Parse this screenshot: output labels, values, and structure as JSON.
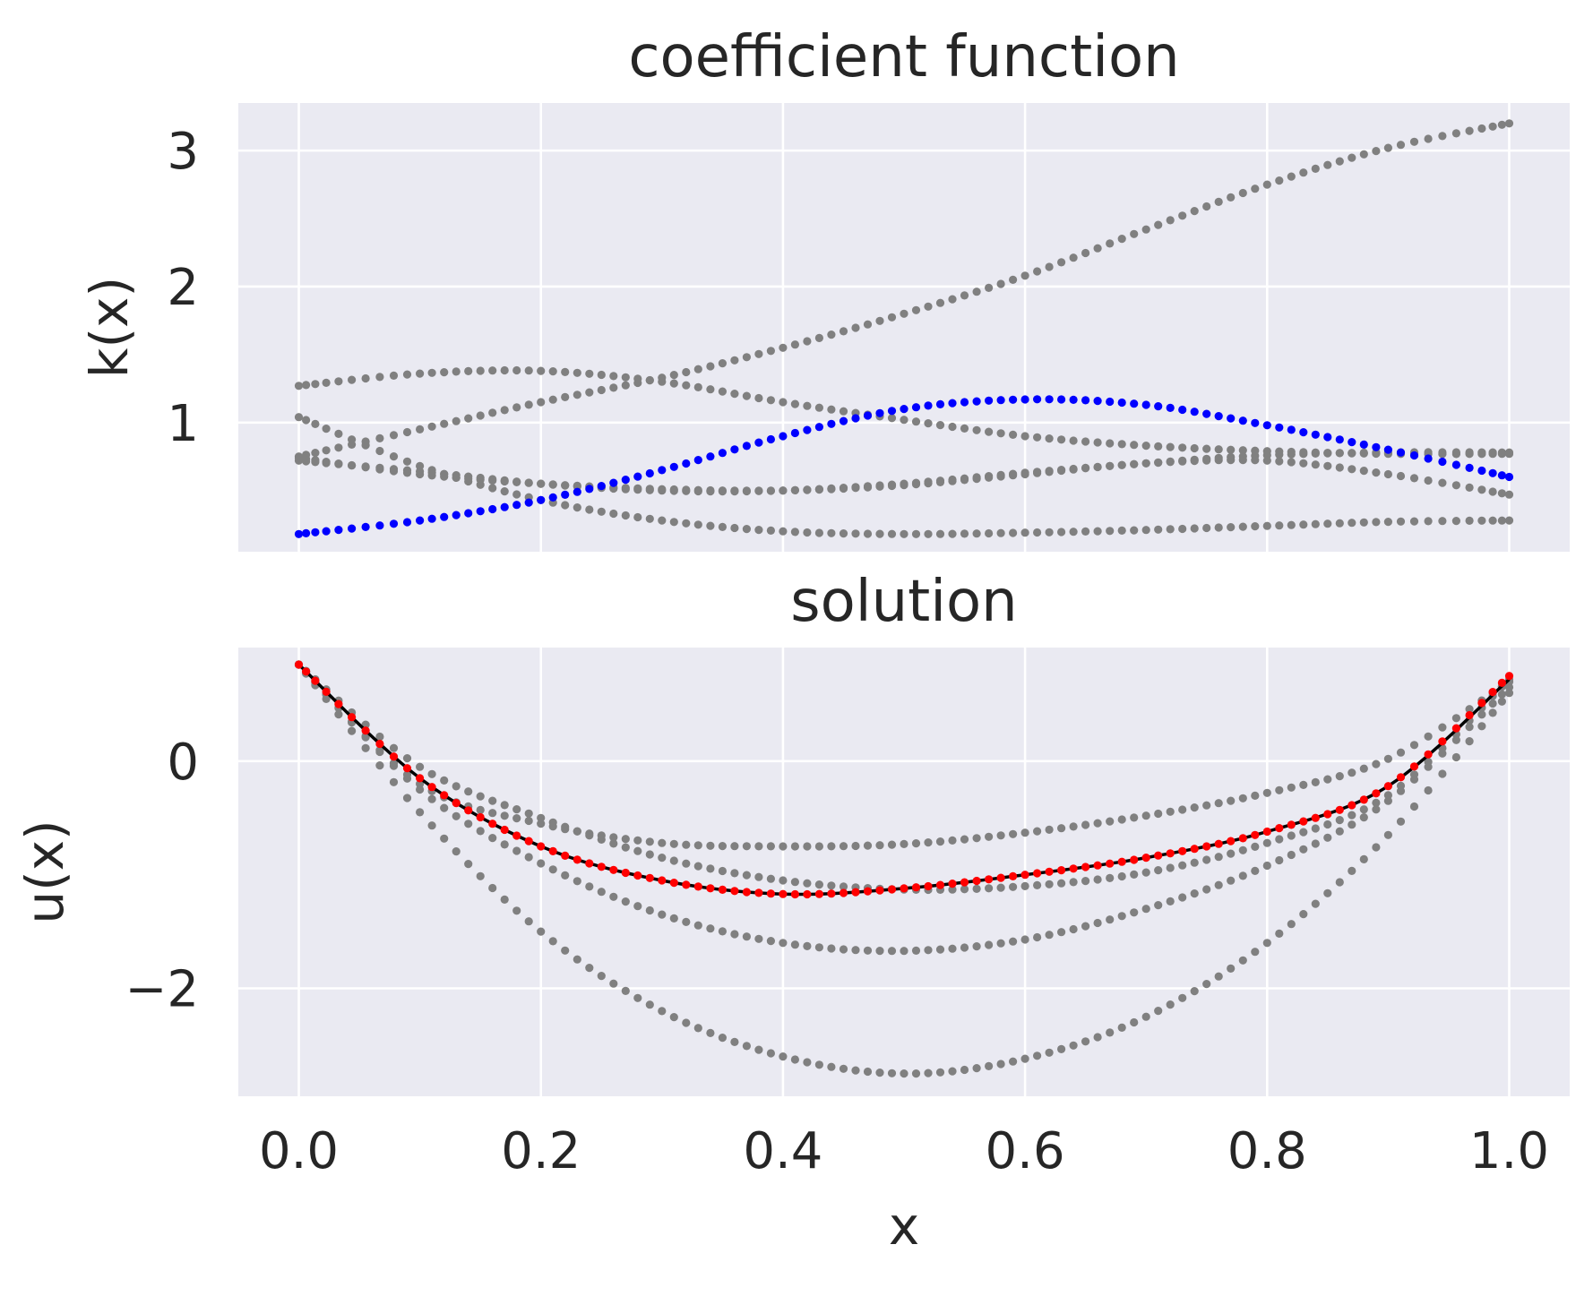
{
  "chart_data": [
    {
      "type": "scatter",
      "title": "coefficient function",
      "xlabel": "",
      "ylabel": "k(x)",
      "xlim": [
        -0.05,
        1.05
      ],
      "ylim": [
        0.05,
        3.35
      ],
      "xticks": [
        0.0,
        0.2,
        0.4,
        0.6,
        0.8,
        1.0
      ],
      "xtick_labels": [
        "",
        "",
        "",
        "",
        "",
        ""
      ],
      "yticks": [
        1,
        2,
        3
      ],
      "ytick_labels": [
        "1",
        "2",
        "3"
      ],
      "grid": true,
      "style": "seaborn-darkgrid",
      "series": [
        {
          "color": "#808080",
          "x": [
            0.0,
            0.1,
            0.2,
            0.3,
            0.4,
            0.5,
            0.6,
            0.7,
            0.8,
            0.9,
            1.0
          ],
          "y": [
            0.75,
            0.95,
            1.15,
            1.33,
            1.55,
            1.8,
            2.08,
            2.42,
            2.75,
            3.02,
            3.2
          ]
        },
        {
          "color": "#808080",
          "x": [
            0.0,
            0.1,
            0.2,
            0.3,
            0.4,
            0.5,
            0.6,
            0.7,
            0.8,
            0.9,
            1.0
          ],
          "y": [
            1.27,
            1.36,
            1.38,
            1.3,
            1.15,
            1.02,
            0.9,
            0.83,
            0.79,
            0.77,
            0.77
          ]
        },
        {
          "color": "#808080",
          "x": [
            0.0,
            0.1,
            0.2,
            0.3,
            0.4,
            0.5,
            0.6,
            0.7,
            0.8,
            0.9,
            1.0
          ],
          "y": [
            1.04,
            0.68,
            0.43,
            0.28,
            0.2,
            0.18,
            0.19,
            0.21,
            0.24,
            0.27,
            0.28
          ]
        },
        {
          "color": "#808080",
          "x": [
            0.0,
            0.1,
            0.2,
            0.3,
            0.4,
            0.5,
            0.6,
            0.7,
            0.8,
            0.9,
            1.0
          ],
          "y": [
            0.72,
            0.64,
            0.55,
            0.5,
            0.5,
            0.55,
            0.63,
            0.7,
            0.76,
            0.78,
            0.78
          ]
        },
        {
          "color": "#808080",
          "x": [
            0.0,
            0.1,
            0.2,
            0.3,
            0.4,
            0.5,
            0.6,
            0.7,
            0.8,
            0.9,
            1.0
          ],
          "y": [
            0.74,
            0.62,
            0.55,
            0.51,
            0.5,
            0.54,
            0.62,
            0.7,
            0.72,
            0.62,
            0.47
          ]
        },
        {
          "color": "#0000ff",
          "x": [
            0.0,
            0.1,
            0.2,
            0.3,
            0.4,
            0.5,
            0.6,
            0.7,
            0.8,
            0.9,
            1.0
          ],
          "y": [
            0.18,
            0.28,
            0.43,
            0.65,
            0.9,
            1.1,
            1.17,
            1.13,
            0.98,
            0.8,
            0.6
          ]
        }
      ]
    },
    {
      "type": "scatter",
      "title": "solution",
      "xlabel": "x",
      "ylabel": "u(x)",
      "xlim": [
        -0.05,
        1.05
      ],
      "ylim": [
        -2.95,
        1.0
      ],
      "xticks": [
        0.0,
        0.2,
        0.4,
        0.6,
        0.8,
        1.0
      ],
      "xtick_labels": [
        "0.0",
        "0.2",
        "0.4",
        "0.6",
        "0.8",
        "1.0"
      ],
      "yticks": [
        -2,
        0
      ],
      "ytick_labels": [
        "−2",
        "0"
      ],
      "grid": true,
      "style": "seaborn-darkgrid",
      "series": [
        {
          "color": "#808080",
          "x": [
            0.0,
            0.1,
            0.2,
            0.3,
            0.4,
            0.5,
            0.6,
            0.7,
            0.8,
            0.9,
            1.0
          ],
          "y": [
            0.85,
            -0.2,
            -0.55,
            -0.72,
            -0.75,
            -0.73,
            -0.63,
            -0.48,
            -0.28,
            0.02,
            0.7
          ]
        },
        {
          "color": "#808080",
          "x": [
            0.0,
            0.1,
            0.2,
            0.3,
            0.4,
            0.5,
            0.6,
            0.7,
            0.8,
            0.9,
            1.0
          ],
          "y": [
            0.85,
            -0.05,
            -0.5,
            -0.85,
            -1.05,
            -1.13,
            -1.1,
            -0.98,
            -0.72,
            -0.3,
            0.72
          ]
        },
        {
          "color": "#808080",
          "x": [
            0.0,
            0.1,
            0.2,
            0.3,
            0.4,
            0.5,
            0.6,
            0.7,
            0.8,
            0.9,
            1.0
          ],
          "y": [
            0.85,
            -0.25,
            -0.9,
            -1.35,
            -1.6,
            -1.67,
            -1.57,
            -1.3,
            -0.92,
            -0.35,
            0.65
          ]
        },
        {
          "color": "#808080",
          "x": [
            0.0,
            0.1,
            0.2,
            0.3,
            0.4,
            0.5,
            0.6,
            0.7,
            0.8,
            0.9,
            1.0
          ],
          "y": [
            0.85,
            -0.45,
            -1.5,
            -2.2,
            -2.6,
            -2.75,
            -2.62,
            -2.25,
            -1.6,
            -0.65,
            0.6
          ]
        },
        {
          "color": "#000000",
          "x": [
            0.0,
            0.1,
            0.2,
            0.3,
            0.4,
            0.5,
            0.6,
            0.7,
            0.8,
            0.9,
            1.0
          ],
          "y": [
            0.85,
            -0.15,
            -0.75,
            -1.05,
            -1.17,
            -1.12,
            -1.0,
            -0.85,
            -0.62,
            -0.22,
            0.72
          ]
        },
        {
          "color": "#ff0000",
          "x": [
            0.0,
            0.1,
            0.2,
            0.3,
            0.4,
            0.5,
            0.6,
            0.7,
            0.8,
            0.9,
            1.0
          ],
          "y": [
            0.85,
            -0.15,
            -0.75,
            -1.05,
            -1.17,
            -1.12,
            -1.0,
            -0.85,
            -0.62,
            -0.22,
            0.75
          ]
        }
      ]
    }
  ]
}
